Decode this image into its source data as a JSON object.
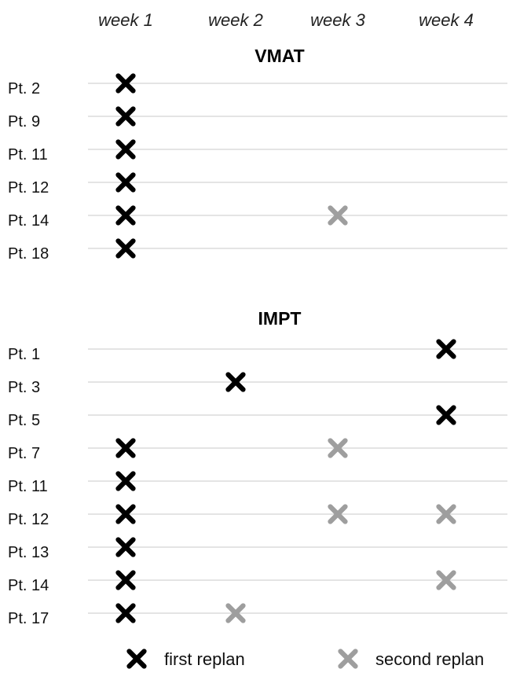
{
  "chart_data": {
    "type": "scatter",
    "x_categories": [
      "week 1",
      "week 2",
      "week 3",
      "week 4"
    ],
    "legend": {
      "position": "bottom",
      "items": [
        {
          "key": "first",
          "label": "first replan",
          "color": "#000000"
        },
        {
          "key": "second",
          "label": "second replan",
          "color": "#9e9e9e"
        }
      ]
    },
    "sections": [
      {
        "title": "VMAT",
        "rows": [
          {
            "label": "Pt. 2",
            "first": "week 1",
            "second": null
          },
          {
            "label": "Pt. 9",
            "first": "week 1",
            "second": null
          },
          {
            "label": "Pt. 11",
            "first": "week 1",
            "second": null
          },
          {
            "label": "Pt. 12",
            "first": "week 1",
            "second": null
          },
          {
            "label": "Pt. 14",
            "first": "week 1",
            "second": "week 3"
          },
          {
            "label": "Pt. 18",
            "first": "week 1",
            "second": null
          }
        ]
      },
      {
        "title": "IMPT",
        "rows": [
          {
            "label": "Pt. 1",
            "first": "week 4",
            "second": null
          },
          {
            "label": "Pt. 3",
            "first": "week 2",
            "second": null
          },
          {
            "label": "Pt. 5",
            "first": "week 4",
            "second": null
          },
          {
            "label": "Pt. 7",
            "first": "week 1",
            "second": "week 3"
          },
          {
            "label": "Pt. 11",
            "first": "week 1",
            "second": null
          },
          {
            "label": "Pt. 12",
            "first": "week 1",
            "second": [
              "week 3",
              "week 4"
            ]
          },
          {
            "label": "Pt. 13",
            "first": "week 1",
            "second": null
          },
          {
            "label": "Pt. 14",
            "first": "week 1",
            "second": "week 4"
          },
          {
            "label": "Pt. 17",
            "first": "week 1",
            "second": "week 2"
          }
        ]
      }
    ]
  }
}
